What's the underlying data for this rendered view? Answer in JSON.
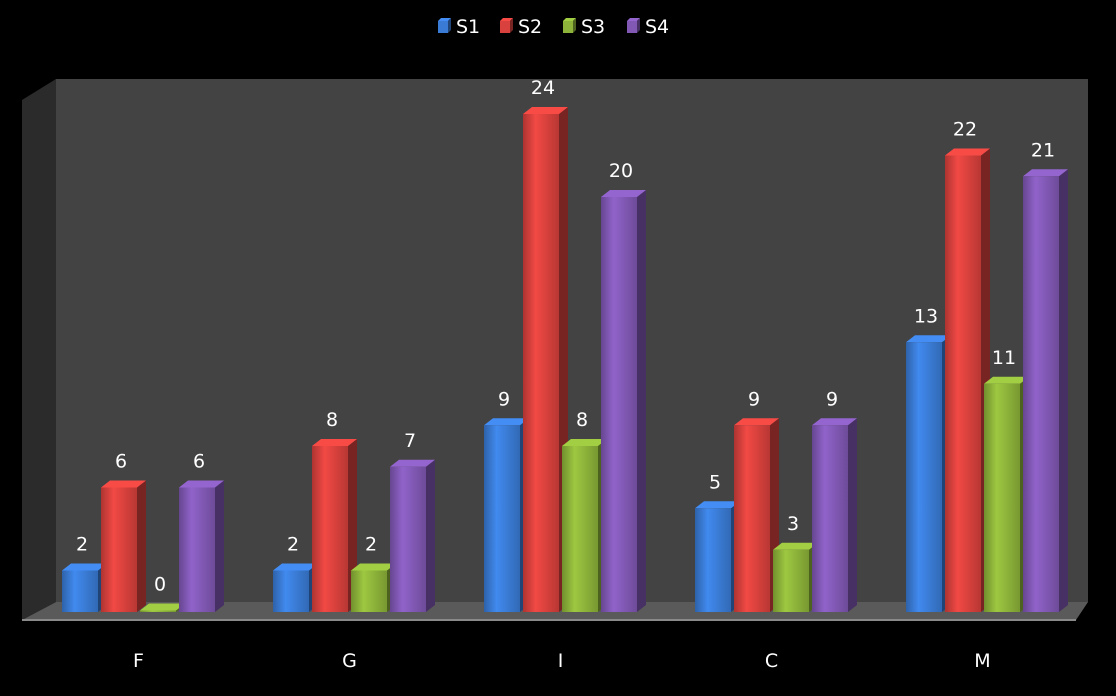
{
  "chart_data": {
    "type": "bar",
    "style": "3d-clustered-column",
    "categories": [
      "F",
      "G",
      "I",
      "C",
      "M"
    ],
    "series": [
      {
        "name": "S1",
        "values": [
          2,
          2,
          9,
          5,
          13
        ],
        "color": "#3a7bd5"
      },
      {
        "name": "S2",
        "values": [
          6,
          8,
          24,
          9,
          22
        ],
        "color": "#d8413d"
      },
      {
        "name": "S3",
        "values": [
          0,
          2,
          8,
          3,
          11
        ],
        "color": "#8db33a"
      },
      {
        "name": "S4",
        "values": [
          6,
          7,
          20,
          9,
          21
        ],
        "color": "#8158b4"
      }
    ],
    "ylim": [
      0,
      24
    ],
    "data_labels": true,
    "legend_position": "top",
    "grid": false,
    "background": "#000000",
    "wall_color": "#444444"
  }
}
